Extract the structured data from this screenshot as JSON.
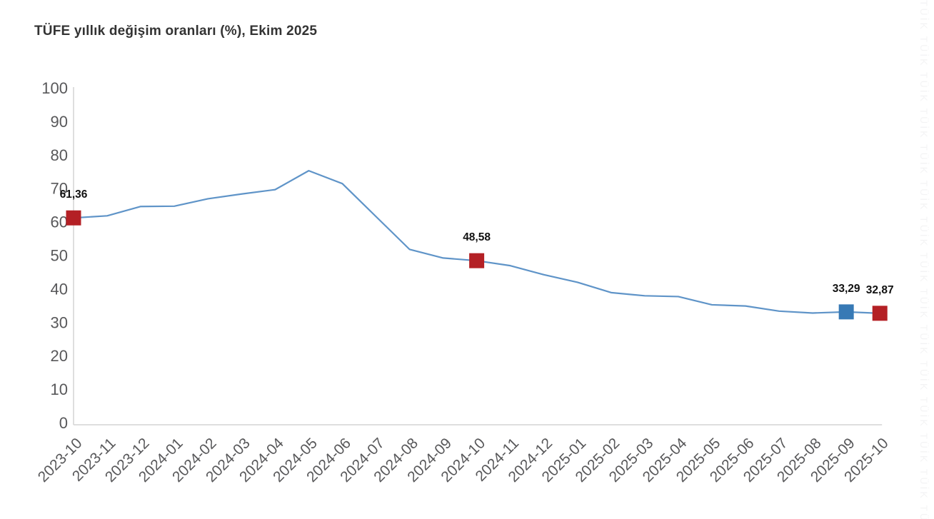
{
  "title": "TÜFE yıllık değişim oranları (%), Ekim 2025",
  "watermark_text": "TÜİK",
  "colors": {
    "line": "#5f94c8",
    "marker_red": "#b42025",
    "marker_blue": "#3779b5",
    "axis": "#d4d4d4",
    "tick_text": "#58585a",
    "title_text": "#333333",
    "point_label_text": "#111111"
  },
  "chart_data": {
    "type": "line",
    "title": "TÜFE yıllık değişim oranları (%), Ekim 2025",
    "x": [
      "2023-10",
      "2023-11",
      "2023-12",
      "2024-01",
      "2024-02",
      "2024-03",
      "2024-04",
      "2024-05",
      "2024-06",
      "2024-07",
      "2024-08",
      "2024-09",
      "2024-10",
      "2024-11",
      "2024-12",
      "2025-01",
      "2025-02",
      "2025-03",
      "2025-04",
      "2025-05",
      "2025-06",
      "2025-07",
      "2025-08",
      "2025-09",
      "2025-10"
    ],
    "values": [
      61.36,
      61.98,
      64.77,
      64.86,
      67.07,
      68.5,
      69.8,
      75.45,
      71.6,
      61.78,
      51.97,
      49.38,
      48.58,
      47.09,
      44.38,
      42.12,
      39.05,
      38.1,
      37.86,
      35.41,
      35.05,
      33.52,
      32.95,
      33.29,
      32.87
    ],
    "ylim": [
      0,
      100
    ],
    "ytick_step": 10,
    "ytick_labels": [
      "0",
      "10",
      "20",
      "30",
      "40",
      "50",
      "60",
      "70",
      "80",
      "90",
      "100"
    ],
    "grid": false,
    "legend": "none",
    "annotated_points": [
      {
        "x": "2023-10",
        "value": 61.36,
        "label": "61,36",
        "marker": "red"
      },
      {
        "x": "2024-10",
        "value": 48.58,
        "label": "48,58",
        "marker": "red"
      },
      {
        "x": "2025-09",
        "value": 33.29,
        "label": "33,29",
        "marker": "blue"
      },
      {
        "x": "2025-10",
        "value": 32.87,
        "label": "32,87",
        "marker": "red"
      }
    ]
  }
}
